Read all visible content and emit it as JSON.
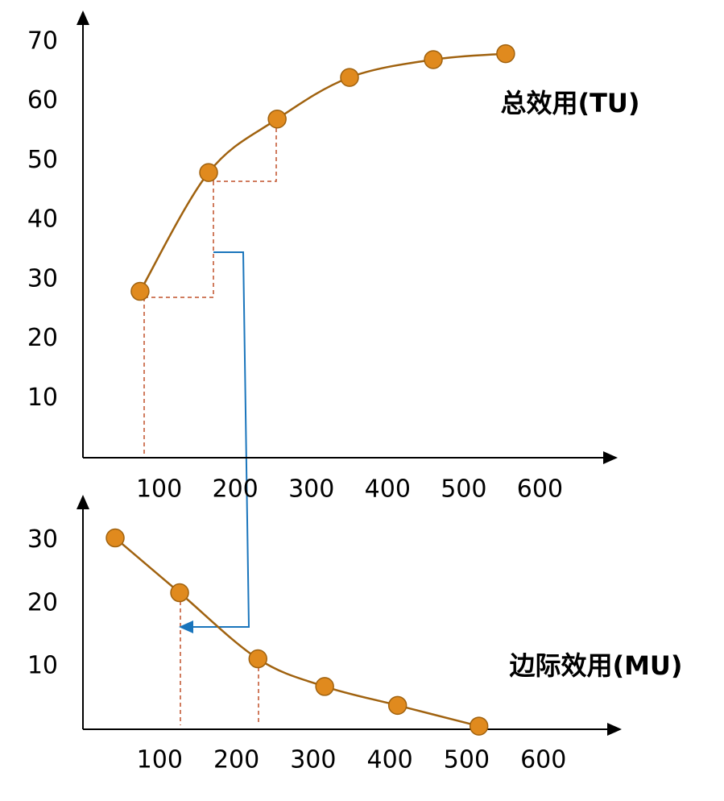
{
  "chart_data": [
    {
      "type": "line",
      "title": "总效用(TU)",
      "x": [
        75,
        165,
        255,
        350,
        460,
        555
      ],
      "values": [
        28,
        48,
        57,
        64,
        67,
        68
      ],
      "color": "#a0620f",
      "marker_color": "#e08a1e",
      "xlim": [
        0,
        700
      ],
      "ylim": [
        0,
        75
      ],
      "xticks": [
        100,
        200,
        300,
        400,
        500,
        600
      ],
      "yticks": [
        10,
        20,
        30,
        40,
        50,
        60,
        70
      ],
      "grid": false
    },
    {
      "type": "line",
      "title": "边际效用(MU)",
      "x": [
        42,
        126,
        228,
        315,
        410,
        516
      ],
      "values": [
        30.4,
        21.7,
        11.2,
        6.8,
        3.8,
        0.5
      ],
      "color": "#a0620f",
      "marker_color": "#e08a1e",
      "xlim": [
        0,
        700
      ],
      "ylim": [
        0,
        37
      ],
      "xticks": [
        100,
        200,
        300,
        400,
        500,
        600
      ],
      "yticks": [
        10,
        20,
        30
      ],
      "grid": false
    }
  ]
}
